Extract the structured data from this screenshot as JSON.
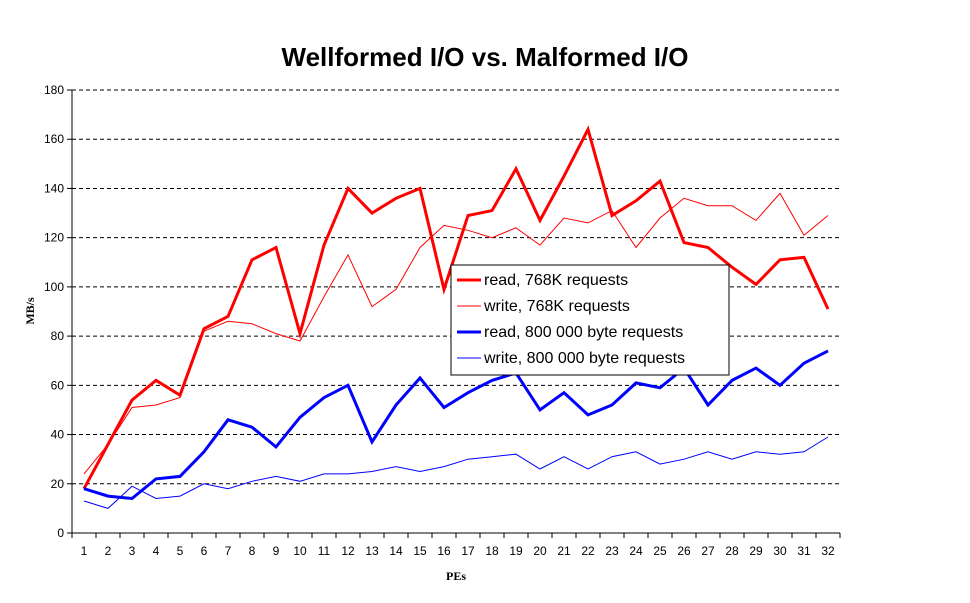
{
  "chart_data": {
    "type": "line",
    "title": "Wellformed I/O vs. Malformed I/O",
    "xlabel": "PEs",
    "ylabel": "MB/s",
    "ylim": [
      0,
      180
    ],
    "yticks": [
      0,
      20,
      40,
      60,
      80,
      100,
      120,
      140,
      160,
      180
    ],
    "x": [
      1,
      2,
      3,
      4,
      5,
      6,
      7,
      8,
      9,
      10,
      11,
      12,
      13,
      14,
      15,
      16,
      17,
      18,
      19,
      20,
      21,
      22,
      23,
      24,
      25,
      26,
      27,
      28,
      29,
      30,
      31,
      32
    ],
    "grid": "horizontal dashed",
    "legend_position": "center-right",
    "series": [
      {
        "name": "read, 768K requests",
        "color": "#ff0000",
        "weight": "thick",
        "values": [
          18,
          36,
          54,
          62,
          56,
          83,
          88,
          111,
          116,
          81,
          117,
          140,
          130,
          136,
          140,
          99,
          129,
          131,
          148,
          127,
          145,
          164,
          129,
          135,
          143,
          118,
          116,
          108,
          101,
          111,
          112,
          91
        ]
      },
      {
        "name": "write, 768K requests",
        "color": "#ff0000",
        "weight": "thin",
        "values": [
          24,
          36,
          51,
          52,
          55,
          82,
          86,
          85,
          81,
          78,
          96,
          113,
          92,
          99,
          116,
          125,
          123,
          120,
          124,
          117,
          128,
          126,
          131,
          116,
          128,
          136,
          133,
          133,
          127,
          138,
          121,
          129
        ]
      },
      {
        "name": "read, 800 000 byte requests",
        "color": "#0000ff",
        "weight": "thick",
        "values": [
          18,
          15,
          14,
          22,
          23,
          33,
          46,
          43,
          35,
          47,
          55,
          60,
          37,
          52,
          63,
          51,
          57,
          62,
          65,
          50,
          57,
          48,
          52,
          61,
          59,
          67,
          52,
          62,
          67,
          60,
          69,
          74
        ]
      },
      {
        "name": "write, 800 000 byte requests",
        "color": "#0000ff",
        "weight": "thin",
        "values": [
          13,
          10,
          19,
          14,
          15,
          20,
          18,
          21,
          23,
          21,
          24,
          24,
          25,
          27,
          25,
          27,
          30,
          31,
          32,
          26,
          31,
          26,
          31,
          33,
          28,
          30,
          33,
          30,
          33,
          32,
          33,
          39
        ]
      }
    ]
  }
}
